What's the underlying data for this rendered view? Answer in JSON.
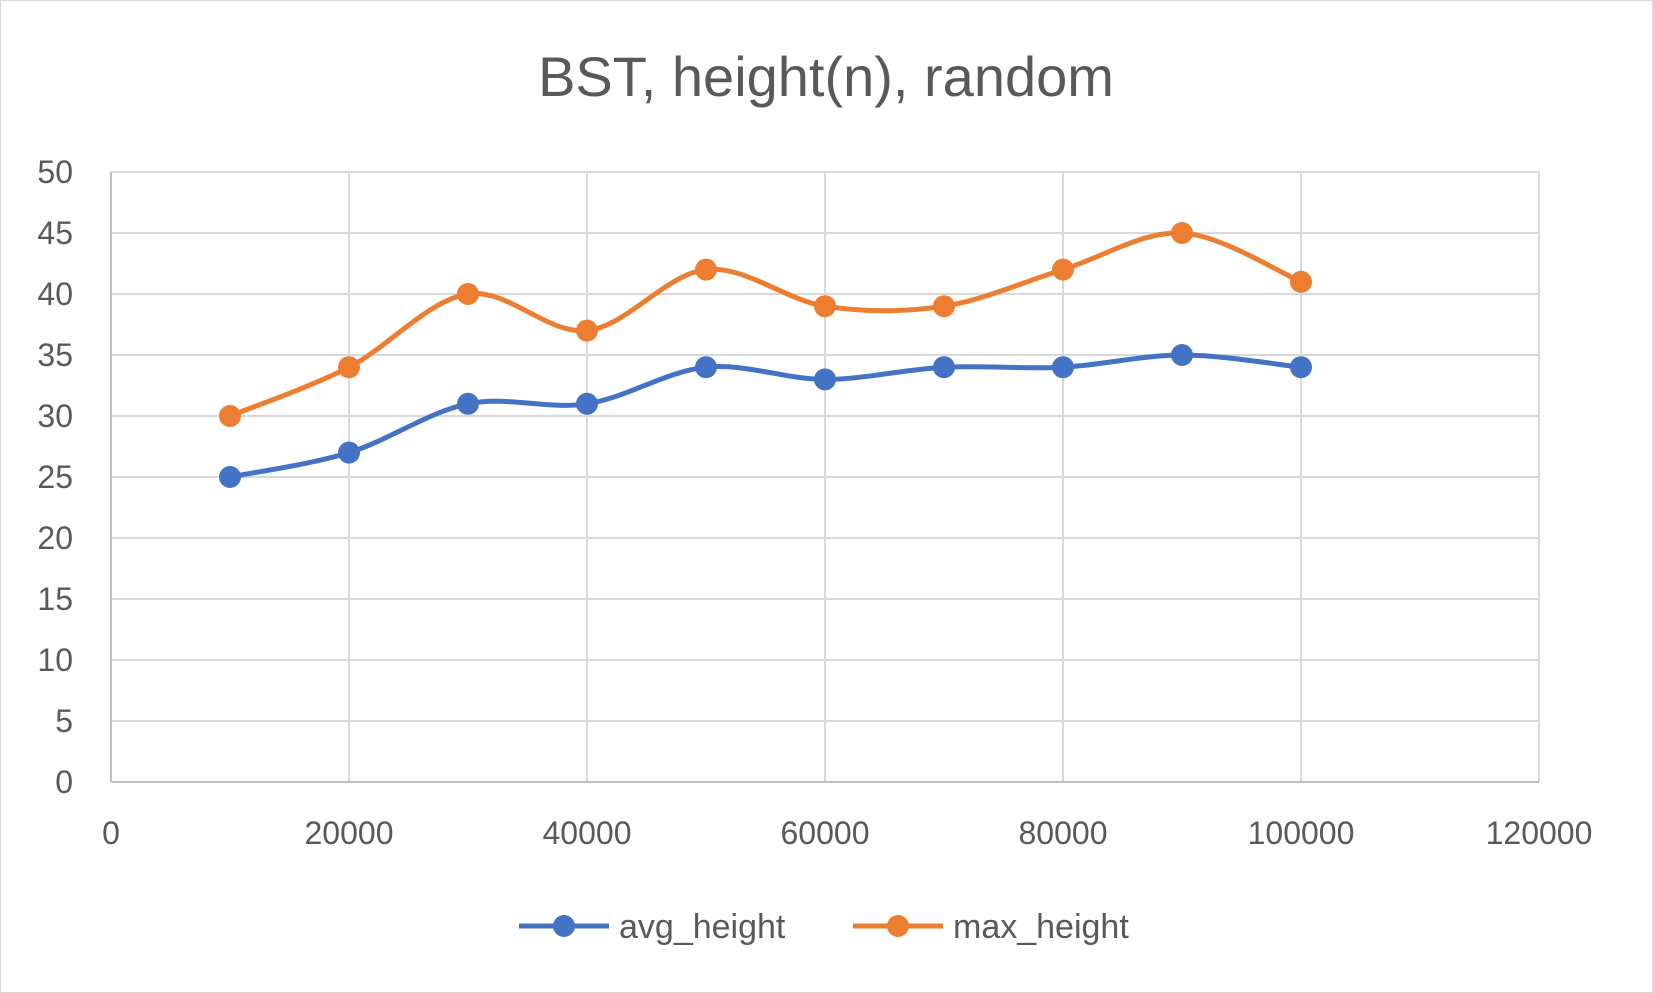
{
  "chart_data": {
    "type": "line",
    "title": "BST, height(n), random",
    "xlabel": "",
    "ylabel": "",
    "x": [
      10000,
      20000,
      30000,
      40000,
      50000,
      60000,
      70000,
      80000,
      90000,
      100000
    ],
    "xlim": [
      0,
      120000
    ],
    "ylim": [
      0,
      50
    ],
    "xticks": [
      0,
      20000,
      40000,
      60000,
      80000,
      100000,
      120000
    ],
    "yticks": [
      0,
      5,
      10,
      15,
      20,
      25,
      30,
      35,
      40,
      45,
      50
    ],
    "grid": true,
    "smooth": true,
    "legend_position": "bottom",
    "series": [
      {
        "name": "avg_height",
        "color": "#4472c4",
        "values": [
          25,
          27,
          31,
          31,
          34,
          33,
          34,
          34,
          35,
          34
        ]
      },
      {
        "name": "max_height",
        "color": "#ed7d31",
        "values": [
          30,
          34,
          40,
          37,
          42,
          39,
          39,
          42,
          45,
          41
        ]
      }
    ]
  }
}
